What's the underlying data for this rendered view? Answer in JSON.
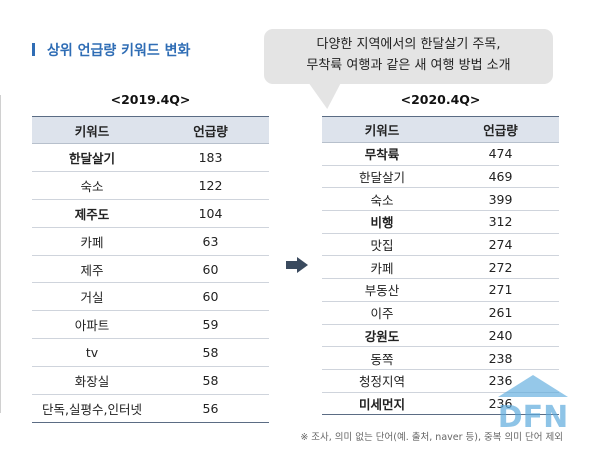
{
  "title": "상위 언급량 키워드 변화",
  "callout": {
    "line1": "다양한 지역에서의 한달살기 주목,",
    "line2": "무착륙 여행과 같은 새 여행 방법 소개"
  },
  "period_2019": "<2019.4Q>",
  "period_2020": "<2020.4Q>",
  "columns": {
    "keyword": "키워드",
    "mentions": "언급량"
  },
  "table_2019": [
    {
      "keyword": "한달살기",
      "mentions": "183",
      "bold": true
    },
    {
      "keyword": "숙소",
      "mentions": "122",
      "bold": false
    },
    {
      "keyword": "제주도",
      "mentions": "104",
      "bold": true
    },
    {
      "keyword": "카페",
      "mentions": "63",
      "bold": false
    },
    {
      "keyword": "제주",
      "mentions": "60",
      "bold": false
    },
    {
      "keyword": "거실",
      "mentions": "60",
      "bold": false
    },
    {
      "keyword": "아파트",
      "mentions": "59",
      "bold": false
    },
    {
      "keyword": "tv",
      "mentions": "58",
      "bold": false
    },
    {
      "keyword": "화장실",
      "mentions": "58",
      "bold": false
    },
    {
      "keyword": "단독,실평수,인터넷",
      "mentions": "56",
      "bold": false
    }
  ],
  "table_2020": [
    {
      "keyword": "무착륙",
      "mentions": "474",
      "bold": true
    },
    {
      "keyword": "한달살기",
      "mentions": "469",
      "bold": false
    },
    {
      "keyword": "숙소",
      "mentions": "399",
      "bold": false
    },
    {
      "keyword": "비행",
      "mentions": "312",
      "bold": true
    },
    {
      "keyword": "맛집",
      "mentions": "274",
      "bold": false
    },
    {
      "keyword": "카페",
      "mentions": "272",
      "bold": false
    },
    {
      "keyword": "부동산",
      "mentions": "271",
      "bold": false
    },
    {
      "keyword": "이주",
      "mentions": "261",
      "bold": false
    },
    {
      "keyword": "강원도",
      "mentions": "240",
      "bold": true
    },
    {
      "keyword": "동쪽",
      "mentions": "238",
      "bold": false
    },
    {
      "keyword": "청정지역",
      "mentions": "236",
      "bold": false
    },
    {
      "keyword": "미세먼지",
      "mentions": "236",
      "bold": true
    }
  ],
  "footnote": "※ 조사, 의미 없는 단어(예. 출처, naver 등), 중복 의미 단어 제외",
  "watermark_text": "DFN",
  "colors": {
    "accent": "#2f6db5",
    "header_bg": "#dde3ec",
    "callout_bg": "#e4e4e4",
    "arrow": "#3a4a5e"
  }
}
